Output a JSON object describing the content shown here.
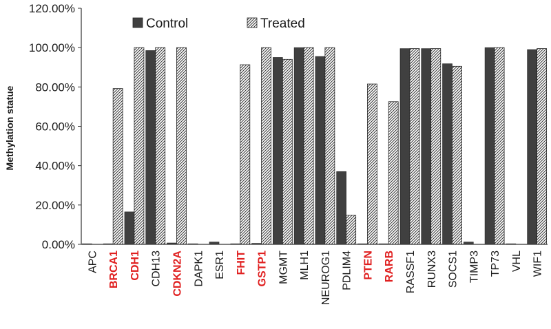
{
  "chart_data": {
    "type": "bar",
    "title": "",
    "xlabel": "",
    "ylabel": "Methylation  statue",
    "ylim": [
      0,
      1.2
    ],
    "yticks": [
      "0.00%",
      "20.00%",
      "40.00%",
      "60.00%",
      "80.00%",
      "100.00%",
      "120.00%"
    ],
    "ytick_values": [
      0,
      0.2,
      0.4,
      0.6,
      0.8,
      1.0,
      1.2
    ],
    "legend_position": "top",
    "categories": [
      "APC",
      "BRCA1",
      "CDH1",
      "CDH13",
      "CDKN2A",
      "DAPK1",
      "ESR1",
      "FHIT",
      "GSTP1",
      "MGMT",
      "MLH1",
      "NEUROG1",
      "PDLIM4",
      "PTEN",
      "RARB",
      "RASSF1",
      "RUNX3",
      "SOCS1",
      "TIMP3",
      "TP73",
      "VHL",
      "WIF1"
    ],
    "highlighted": [
      false,
      true,
      true,
      false,
      true,
      false,
      false,
      true,
      true,
      false,
      false,
      false,
      false,
      true,
      true,
      false,
      false,
      false,
      false,
      false,
      false,
      false
    ],
    "series": [
      {
        "name": "Control",
        "values": [
          0.003,
          0.003,
          0.165,
          0.985,
          0.007,
          0.003,
          0.012,
          0.003,
          0.005,
          0.95,
          1.0,
          0.955,
          0.37,
          0.003,
          0.003,
          0.995,
          0.995,
          0.918,
          0.012,
          1.0,
          0.003,
          0.99
        ]
      },
      {
        "name": "Treated",
        "values": [
          0.0,
          0.792,
          1.0,
          1.0,
          1.0,
          0.0,
          0.0,
          0.913,
          1.0,
          0.94,
          1.0,
          1.0,
          0.148,
          0.815,
          0.725,
          0.995,
          0.995,
          0.905,
          0.0,
          1.0,
          0.0,
          0.995
        ]
      }
    ],
    "colors": {
      "control": "#404040",
      "highlight": "#e02020",
      "text": "#1a1a1a",
      "axis": "#333333"
    }
  }
}
